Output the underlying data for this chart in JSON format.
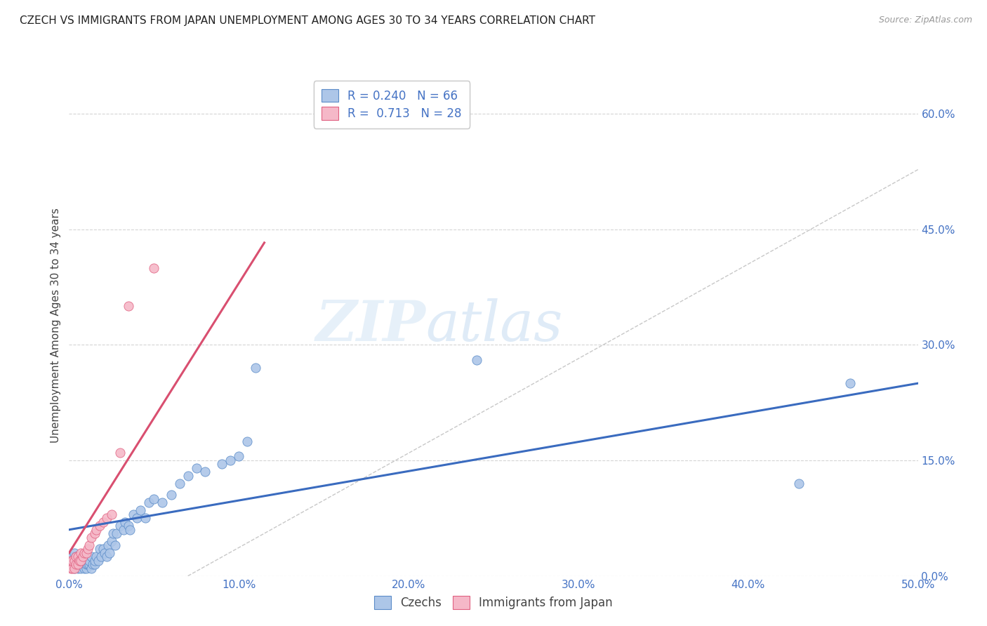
{
  "title": "CZECH VS IMMIGRANTS FROM JAPAN UNEMPLOYMENT AMONG AGES 30 TO 34 YEARS CORRELATION CHART",
  "source": "Source: ZipAtlas.com",
  "ylabel": "Unemployment Among Ages 30 to 34 years",
  "xlim": [
    0.0,
    0.5
  ],
  "ylim": [
    0.0,
    0.65
  ],
  "xticks": [
    0.0,
    0.1,
    0.2,
    0.3,
    0.4,
    0.5
  ],
  "xtick_labels": [
    "0.0%",
    "10.0%",
    "20.0%",
    "30.0%",
    "40.0%",
    "50.0%"
  ],
  "yticks": [
    0.0,
    0.15,
    0.3,
    0.45,
    0.6
  ],
  "ytick_labels": [
    "0.0%",
    "15.0%",
    "30.0%",
    "45.0%",
    "60.0%"
  ],
  "watermark_zip": "ZIP",
  "watermark_atlas": "atlas",
  "legend_r1": "R = 0.240",
  "legend_n1": "N = 66",
  "legend_r2": "R = 0.713",
  "legend_n2": "N = 28",
  "blue_fill": "#adc6e8",
  "blue_edge": "#5b8cc8",
  "pink_fill": "#f5b8c8",
  "pink_edge": "#e06080",
  "line_blue": "#3a6bbf",
  "line_pink": "#d94f70",
  "diag_color": "#c8c8c8",
  "czechs_x": [
    0.001,
    0.002,
    0.003,
    0.003,
    0.004,
    0.004,
    0.005,
    0.005,
    0.006,
    0.006,
    0.007,
    0.007,
    0.008,
    0.008,
    0.009,
    0.009,
    0.01,
    0.01,
    0.01,
    0.011,
    0.011,
    0.012,
    0.012,
    0.013,
    0.013,
    0.014,
    0.015,
    0.015,
    0.016,
    0.017,
    0.018,
    0.019,
    0.02,
    0.021,
    0.022,
    0.023,
    0.024,
    0.025,
    0.026,
    0.027,
    0.028,
    0.03,
    0.032,
    0.033,
    0.035,
    0.036,
    0.038,
    0.04,
    0.042,
    0.045,
    0.047,
    0.05,
    0.055,
    0.06,
    0.065,
    0.07,
    0.075,
    0.08,
    0.09,
    0.095,
    0.1,
    0.105,
    0.11,
    0.24,
    0.43,
    0.46
  ],
  "czechs_y": [
    0.02,
    0.025,
    0.01,
    0.03,
    0.015,
    0.025,
    0.01,
    0.02,
    0.015,
    0.025,
    0.01,
    0.02,
    0.015,
    0.025,
    0.01,
    0.02,
    0.01,
    0.015,
    0.025,
    0.015,
    0.02,
    0.015,
    0.02,
    0.01,
    0.025,
    0.015,
    0.015,
    0.02,
    0.025,
    0.02,
    0.035,
    0.025,
    0.035,
    0.03,
    0.025,
    0.04,
    0.03,
    0.045,
    0.055,
    0.04,
    0.055,
    0.065,
    0.06,
    0.07,
    0.065,
    0.06,
    0.08,
    0.075,
    0.085,
    0.075,
    0.095,
    0.1,
    0.095,
    0.105,
    0.12,
    0.13,
    0.14,
    0.135,
    0.145,
    0.15,
    0.155,
    0.175,
    0.27,
    0.28,
    0.12,
    0.25
  ],
  "japan_x": [
    0.001,
    0.001,
    0.002,
    0.002,
    0.003,
    0.003,
    0.004,
    0.004,
    0.005,
    0.005,
    0.006,
    0.007,
    0.007,
    0.008,
    0.009,
    0.01,
    0.011,
    0.012,
    0.013,
    0.015,
    0.016,
    0.018,
    0.02,
    0.022,
    0.025,
    0.03,
    0.035,
    0.05
  ],
  "japan_y": [
    0.01,
    0.02,
    0.01,
    0.02,
    0.01,
    0.02,
    0.015,
    0.025,
    0.015,
    0.025,
    0.02,
    0.02,
    0.03,
    0.025,
    0.03,
    0.03,
    0.035,
    0.04,
    0.05,
    0.055,
    0.06,
    0.065,
    0.07,
    0.075,
    0.08,
    0.16,
    0.35,
    0.4
  ]
}
